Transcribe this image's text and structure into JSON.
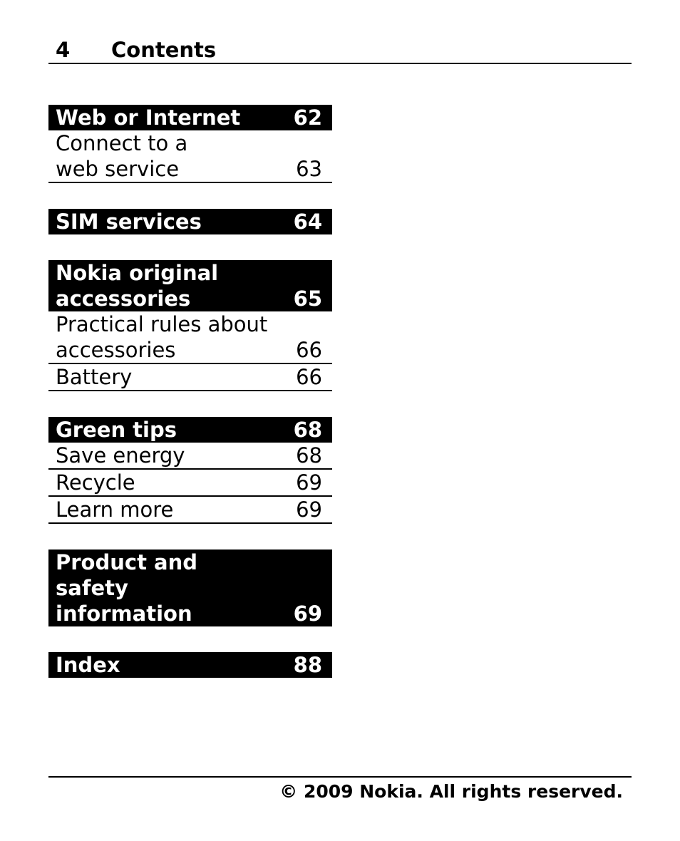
{
  "header": {
    "page_number": "4",
    "title": "Contents"
  },
  "sections": [
    {
      "title": "Web or Internet",
      "page": "62",
      "entries": [
        {
          "title": "Connect to a web service",
          "page": "63"
        }
      ]
    },
    {
      "title": "SIM services",
      "page": "64",
      "entries": []
    },
    {
      "title": "Nokia original accessories",
      "page": "65",
      "entries": [
        {
          "title": "Practical rules about accessories",
          "page": "66"
        },
        {
          "title": "Battery",
          "page": "66"
        }
      ]
    },
    {
      "title": "Green tips",
      "page": "68",
      "entries": [
        {
          "title": "Save energy",
          "page": "68"
        },
        {
          "title": "Recycle",
          "page": "69"
        },
        {
          "title": "Learn more",
          "page": "69"
        }
      ]
    },
    {
      "title": "Product and safety information",
      "page": "69",
      "entries": []
    },
    {
      "title": "Index",
      "page": "88",
      "entries": []
    }
  ],
  "footer": {
    "copyright": "© 2009 Nokia. All rights reserved."
  }
}
